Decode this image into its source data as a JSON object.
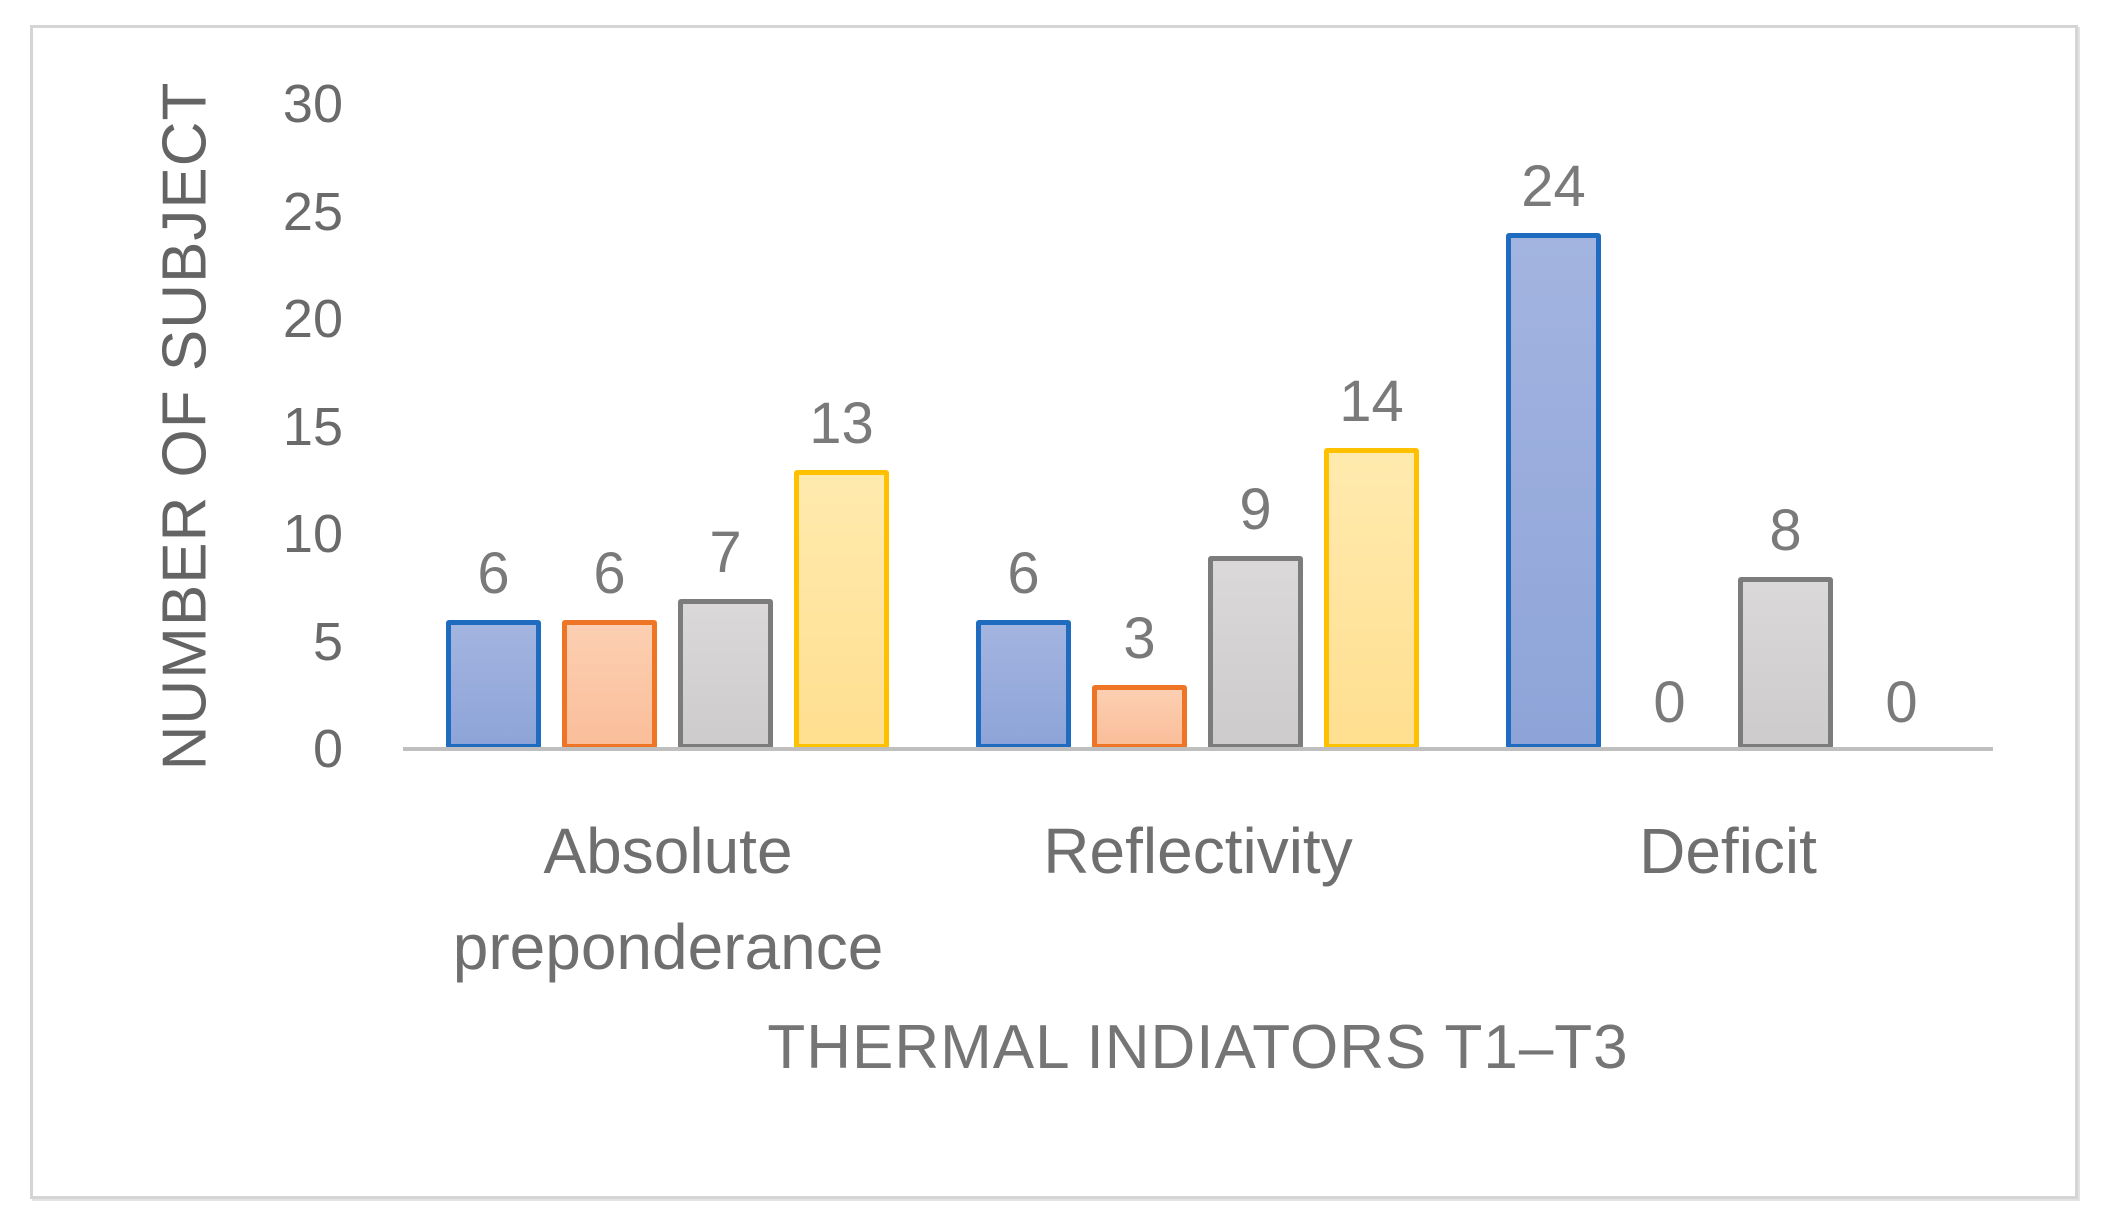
{
  "chart_data": {
    "type": "bar",
    "categories": [
      "Absolute preponderance",
      "Reflectivity",
      "Deficit"
    ],
    "series": [
      {
        "name": "blue",
        "values": [
          6,
          6,
          24
        ],
        "fill": "#8EA4D8",
        "fill_top": "#A3B4E0",
        "border": "#1F6BC0"
      },
      {
        "name": "orange",
        "values": [
          6,
          3,
          0
        ],
        "fill": "#FABE9A",
        "fill_top": "#FCCFB2",
        "border": "#EE7526"
      },
      {
        "name": "gray",
        "values": [
          7,
          9,
          8
        ],
        "fill": "#CDCBCB",
        "fill_top": "#DAD8D8",
        "border": "#7C7C7C"
      },
      {
        "name": "yellow",
        "values": [
          13,
          14,
          0
        ],
        "fill": "#FFDF90",
        "fill_top": "#FFEAAE",
        "border": "#FFC000"
      }
    ],
    "title": "",
    "xlabel": "THERMAL INDIATORS T1–T3",
    "ylabel": "NUMBER OF SUBJECT",
    "ylim": [
      0,
      30
    ],
    "ytick_step": 5,
    "ytick_labels": [
      "0",
      "5",
      "10",
      "15",
      "20",
      "25",
      "30"
    ],
    "grid": false,
    "legend": false,
    "data_labels_shown": true,
    "colors": {
      "axis_line": "#BFBFBF",
      "tick_text": "#6A6A6A",
      "data_label_text": "#7A7A7A",
      "category_text": "#6F6F6F",
      "axis_title_text": "#757575",
      "frame_border": "#D5D5D5"
    }
  }
}
